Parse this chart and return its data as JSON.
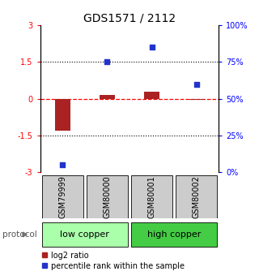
{
  "title": "GDS1571 / 2112",
  "samples": [
    "GSM79999",
    "GSM80000",
    "GSM80001",
    "GSM80002"
  ],
  "log2_ratio": [
    -1.3,
    0.15,
    0.3,
    -0.04
  ],
  "percentile_rank": [
    5,
    75,
    85,
    60
  ],
  "groups": [
    {
      "label": "low copper",
      "samples": [
        0,
        1
      ],
      "color": "#aaffaa"
    },
    {
      "label": "high copper",
      "samples": [
        2,
        3
      ],
      "color": "#44cc44"
    }
  ],
  "ylim": [
    -3,
    3
  ],
  "y_ticks_left": [
    -3,
    -1.5,
    0,
    1.5,
    3
  ],
  "y_ticks_right_pct": [
    0,
    25,
    50,
    75,
    100
  ],
  "dotted_lines": [
    -1.5,
    1.5
  ],
  "bar_color": "#aa2222",
  "scatter_color": "#2233cc",
  "bar_width": 0.35,
  "sample_box_color": "#cccccc",
  "title_fontsize": 10,
  "tick_fontsize": 7,
  "legend_label_log2": "log2 ratio",
  "legend_label_pct": "percentile rank within the sample",
  "legend_fontsize": 7,
  "protocol_label": "protocol",
  "group_fontsize": 8,
  "sample_fontsize": 7
}
